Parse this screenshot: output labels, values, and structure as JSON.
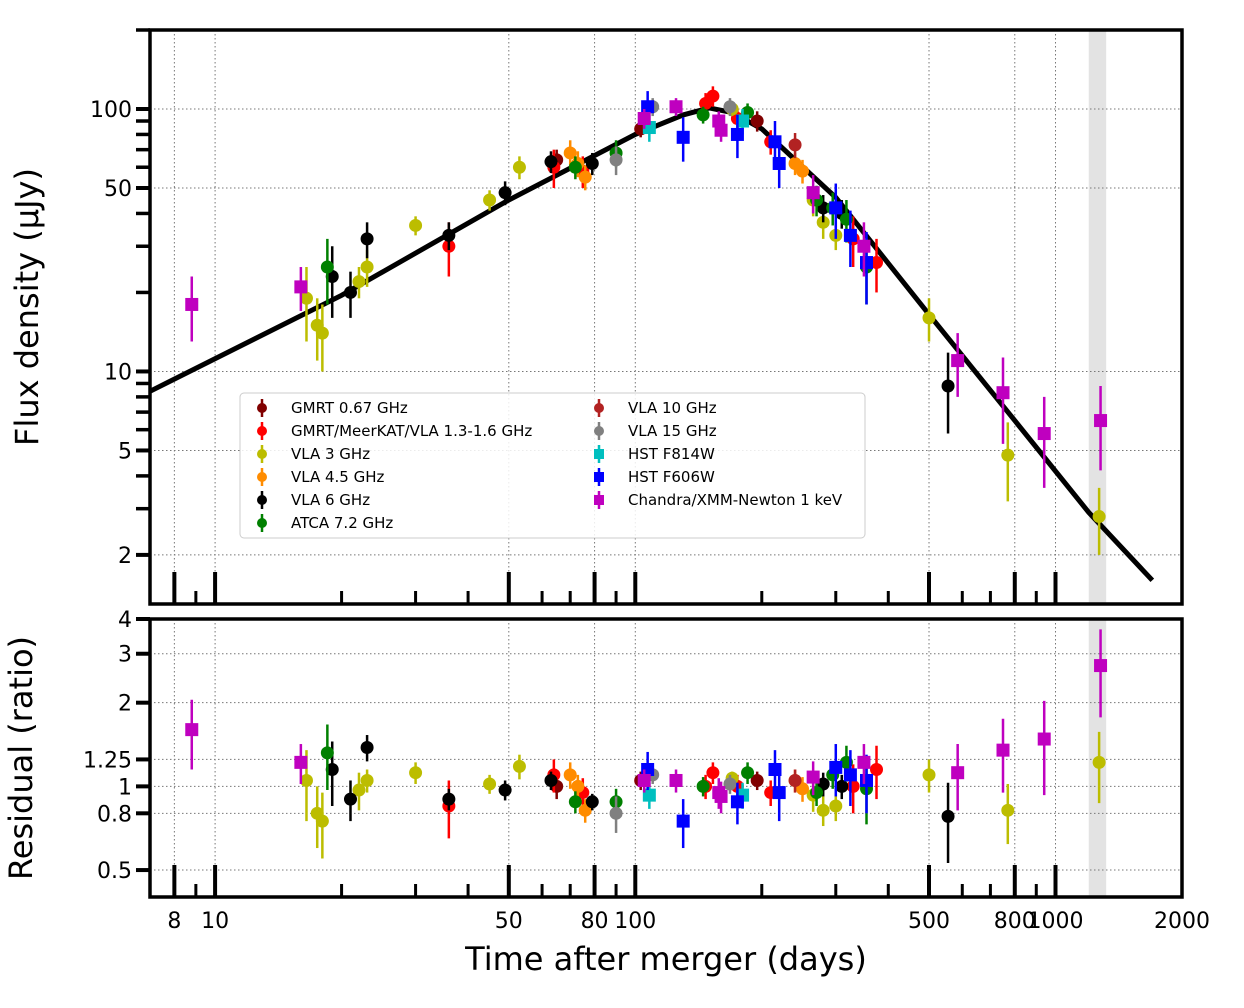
{
  "chart_data": {
    "type": "scatter",
    "xlabel": "Time after merger (days)",
    "x_scale": "log",
    "xlim": [
      7,
      2000
    ],
    "x_ticks": [
      8,
      10,
      50,
      80,
      100,
      500,
      800,
      1000,
      2000
    ],
    "x_tick_labels": [
      "8",
      "10",
      "50",
      "80",
      "100",
      "500",
      "800",
      "1000",
      "2000"
    ],
    "grid": true,
    "shaded_band": [
      1200,
      1320
    ],
    "panels": [
      {
        "id": "flux",
        "ylabel": "Flux density (μJy)",
        "y_scale": "log",
        "ylim": [
          1.3,
          200
        ],
        "y_ticks": [
          2,
          5,
          10,
          50,
          100
        ],
        "y_tick_labels": [
          "2",
          "5",
          "10",
          "50",
          "100"
        ],
        "model_curve": {
          "x": [
            7,
            20,
            50,
            100,
            130,
            150,
            170,
            200,
            300,
            500,
            800,
            1200,
            1700
          ],
          "y": [
            8.4,
            19.5,
            45,
            80,
            95,
            101,
            97,
            84,
            46,
            16.5,
            6.5,
            2.9,
            1.6
          ]
        }
      },
      {
        "id": "residual",
        "ylabel": "Residual (ratio)",
        "y_scale": "log",
        "ylim": [
          0.4,
          4
        ],
        "y_ticks": [
          0.5,
          0.8,
          1,
          1.25,
          2,
          3,
          4
        ],
        "y_tick_labels": [
          "0.5",
          "0.8",
          "1",
          "1.25",
          "2",
          "3",
          "4"
        ]
      }
    ],
    "series": [
      {
        "name": "GMRT 0.67 GHz",
        "color": "#800000",
        "marker": "circle",
        "points": [
          [
            65,
            64,
            6,
            1.0,
            0.1
          ],
          [
            103,
            84,
            6,
            1.05,
            0.08
          ],
          [
            195,
            90,
            8,
            1.05,
            0.08
          ]
        ]
      },
      {
        "name": "GMRT/MeerKAT/VLA 1.3-1.6 GHz",
        "color": "#ff0000",
        "marker": "circle",
        "points": [
          [
            36,
            30,
            7,
            0.85,
            0.2
          ],
          [
            64,
            60,
            10,
            1.1,
            0.15
          ],
          [
            75,
            58,
            8,
            0.95,
            0.12
          ],
          [
            147,
            105,
            10,
            1.0,
            0.1
          ],
          [
            153,
            112,
            10,
            1.12,
            0.1
          ],
          [
            175,
            92,
            8,
            1.0,
            0.1
          ],
          [
            210,
            75,
            8,
            0.95,
            0.1
          ],
          [
            330,
            32,
            7,
            1.0,
            0.2
          ],
          [
            375,
            26,
            6,
            1.15,
            0.25
          ]
        ]
      },
      {
        "name": "VLA 3 GHz",
        "color": "#bcbd00",
        "marker": "circle",
        "points": [
          [
            16.5,
            19,
            6,
            1.05,
            0.3
          ],
          [
            17.5,
            15,
            4,
            0.8,
            0.2
          ],
          [
            18,
            14,
            4,
            0.75,
            0.2
          ],
          [
            22,
            22,
            3,
            0.97,
            0.15
          ],
          [
            23,
            25,
            4,
            1.05,
            0.1
          ],
          [
            30,
            36,
            3,
            1.12,
            0.1
          ],
          [
            45,
            45,
            4,
            1.02,
            0.08
          ],
          [
            53,
            60,
            6,
            1.18,
            0.12
          ],
          [
            170,
            100,
            6,
            1.07,
            0.06
          ],
          [
            265,
            45,
            6,
            0.93,
            0.12
          ],
          [
            280,
            37,
            5,
            0.82,
            0.1
          ],
          [
            300,
            33,
            4,
            0.85,
            0.1
          ],
          [
            500,
            16,
            3,
            1.1,
            0.15
          ],
          [
            770,
            4.8,
            1.6,
            0.82,
            0.2
          ],
          [
            1270,
            2.8,
            0.8,
            1.22,
            0.35
          ]
        ]
      },
      {
        "name": "VLA 4.5 GHz",
        "color": "#ff8c00",
        "marker": "circle",
        "points": [
          [
            70,
            68,
            8,
            1.1,
            0.12
          ],
          [
            73,
            62,
            7,
            1.0,
            0.1
          ],
          [
            76,
            55,
            6,
            0.82,
            0.08
          ],
          [
            240,
            62,
            6,
            1.05,
            0.1
          ],
          [
            250,
            58,
            6,
            0.98,
            0.1
          ]
        ]
      },
      {
        "name": "VLA 6 GHz",
        "color": "#000000",
        "marker": "circle",
        "points": [
          [
            19,
            23,
            7,
            1.15,
            0.3
          ],
          [
            21,
            20,
            4,
            0.9,
            0.15
          ],
          [
            23,
            32,
            5,
            1.38,
            0.15
          ],
          [
            36,
            33,
            4,
            0.9,
            0.08
          ],
          [
            49,
            48,
            5,
            0.97,
            0.08
          ],
          [
            63,
            63,
            6,
            1.05,
            0.08
          ],
          [
            79,
            62,
            6,
            0.88,
            0.06
          ],
          [
            280,
            42,
            5,
            1.02,
            0.1
          ],
          [
            310,
            40,
            5,
            1.0,
            0.1
          ],
          [
            555,
            8.8,
            3,
            0.78,
            0.25
          ]
        ]
      },
      {
        "name": "ATCA 7.2 GHz",
        "color": "#008000",
        "marker": "circle",
        "points": [
          [
            18.5,
            25,
            7,
            1.32,
            0.35
          ],
          [
            72,
            60,
            6,
            0.88,
            0.08
          ],
          [
            90,
            68,
            8,
            0.88,
            0.1
          ],
          [
            145,
            95,
            7,
            1.0,
            0.08
          ],
          [
            185,
            97,
            8,
            1.12,
            0.1
          ],
          [
            270,
            45,
            6,
            0.95,
            0.1
          ],
          [
            295,
            42,
            6,
            1.1,
            0.12
          ],
          [
            318,
            38,
            7,
            1.22,
            0.18
          ],
          [
            355,
            25,
            7,
            0.98,
            0.25
          ]
        ]
      },
      {
        "name": "VLA 10 GHz",
        "color": "#b22222",
        "marker": "circle",
        "points": [
          [
            240,
            73,
            8,
            1.05,
            0.1
          ]
        ]
      },
      {
        "name": "VLA 15 GHz",
        "color": "#808080",
        "marker": "circle",
        "points": [
          [
            90,
            64,
            8,
            0.8,
            0.12
          ],
          [
            110,
            102,
            8,
            1.1,
            0.08
          ],
          [
            168,
            102,
            8,
            1.02,
            0.08
          ]
        ]
      },
      {
        "name": "HST F814W",
        "color": "#00bfbf",
        "marker": "square",
        "points": [
          [
            108,
            85,
            10,
            0.93,
            0.1
          ],
          [
            180,
            90,
            10,
            0.93,
            0.1
          ]
        ]
      },
      {
        "name": "HST F606W",
        "color": "#0000ff",
        "marker": "square",
        "points": [
          [
            107,
            102,
            15,
            1.15,
            0.18
          ],
          [
            130,
            78,
            15,
            0.75,
            0.15
          ],
          [
            175,
            80,
            15,
            0.88,
            0.15
          ],
          [
            215,
            75,
            15,
            1.15,
            0.2
          ],
          [
            220,
            62,
            12,
            0.95,
            0.2
          ],
          [
            300,
            42,
            10,
            1.17,
            0.25
          ],
          [
            325,
            33,
            8,
            1.1,
            0.25
          ],
          [
            355,
            26,
            8,
            1.05,
            0.25
          ]
        ]
      },
      {
        "name": "Chandra/XMM-Newton 1 keV",
        "color": "#bf00bf",
        "marker": "square",
        "points": [
          [
            8.8,
            18,
            5,
            1.6,
            0.45
          ],
          [
            16,
            21,
            4,
            1.22,
            0.2
          ],
          [
            105,
            92,
            8,
            1.05,
            0.1
          ],
          [
            125,
            102,
            8,
            1.05,
            0.1
          ],
          [
            158,
            90,
            8,
            0.95,
            0.12
          ],
          [
            160,
            83,
            8,
            0.92,
            0.12
          ],
          [
            265,
            48,
            8,
            1.08,
            0.15
          ],
          [
            350,
            30,
            7,
            1.22,
            0.2
          ],
          [
            585,
            11,
            3,
            1.12,
            0.3
          ],
          [
            750,
            8.3,
            3,
            1.35,
            0.4
          ],
          [
            940,
            5.8,
            2.2,
            1.48,
            0.55
          ],
          [
            1280,
            6.5,
            2.3,
            2.72,
            0.95
          ]
        ]
      }
    ],
    "legend": {
      "columns": 2,
      "entries": [
        "GMRT 0.67 GHz",
        "GMRT/MeerKAT/VLA 1.3-1.6 GHz",
        "VLA 3 GHz",
        "VLA 4.5 GHz",
        "VLA 6 GHz",
        "ATCA 7.2 GHz",
        "VLA 10 GHz",
        "VLA 15 GHz",
        "HST F814W",
        "HST F606W",
        "Chandra/XMM-Newton 1 keV"
      ]
    }
  }
}
